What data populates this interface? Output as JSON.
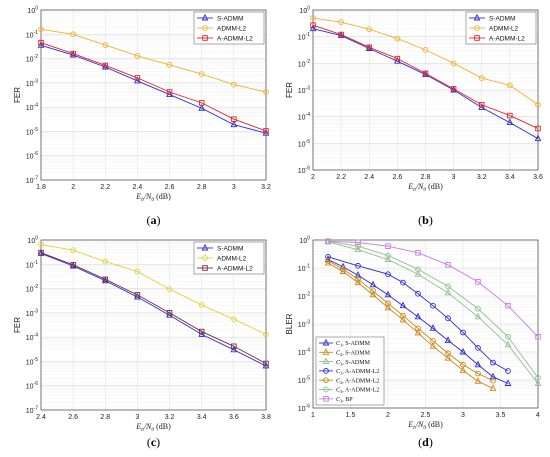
{
  "chart_data": [
    {
      "panel_label": "(a)",
      "type": "line",
      "ylabel": "FER",
      "xlabel": "E_b/N_0 (dB)",
      "xlim": [
        1.8,
        3.2
      ],
      "xticks": [
        "1.8",
        "2",
        "2.2",
        "2.4",
        "2.6",
        "2.8",
        "3",
        "3.2"
      ],
      "ylim_log10": [
        -7,
        0
      ],
      "grid": true,
      "legend_position": "top-right",
      "series": [
        {
          "name": "S-ADMM",
          "color": "#2b2bd6",
          "marker": "triangle",
          "x": [
            1.8,
            2.0,
            2.2,
            2.4,
            2.6,
            2.8,
            3.0,
            3.2
          ],
          "y": [
            0.035,
            0.014,
            0.0045,
            0.0012,
            0.00033,
            9e-05,
            1.9e-05,
            8.5e-06
          ]
        },
        {
          "name": "ADMM-L2",
          "color": "#f0b030",
          "marker": "circle",
          "x": [
            1.8,
            2.0,
            2.2,
            2.4,
            2.6,
            2.8,
            3.0,
            3.2
          ],
          "y": [
            0.16,
            0.1,
            0.036,
            0.013,
            0.0055,
            0.0023,
            0.00085,
            0.00042
          ]
        },
        {
          "name": "A-ADMM-L2",
          "color": "#e02525",
          "marker": "square",
          "x": [
            1.8,
            2.0,
            2.2,
            2.4,
            2.6,
            2.8,
            3.0,
            3.2
          ],
          "y": [
            0.045,
            0.016,
            0.0052,
            0.0016,
            0.00042,
            0.00015,
            3.2e-05,
            1.05e-05
          ]
        }
      ]
    },
    {
      "panel_label": "(b)",
      "type": "line",
      "ylabel": "FER",
      "xlabel": "E_b/N_0 (dB)",
      "xlim": [
        2.0,
        3.6
      ],
      "xticks": [
        "2",
        "2.2",
        "2.4",
        "2.6",
        "2.8",
        "3",
        "3.2",
        "3.4",
        "3.6"
      ],
      "ylim_log10": [
        -6,
        0
      ],
      "grid": true,
      "legend_position": "top-right",
      "series": [
        {
          "name": "S-ADMM",
          "color": "#2b2bd6",
          "marker": "triangle",
          "x": [
            2.0,
            2.2,
            2.4,
            2.6,
            2.8,
            3.0,
            3.2,
            3.4,
            3.6
          ],
          "y": [
            0.2,
            0.11,
            0.036,
            0.012,
            0.0038,
            0.001,
            0.00022,
            6e-05,
            1.5e-05
          ]
        },
        {
          "name": "ADMM-L2",
          "color": "#f0b030",
          "marker": "circle",
          "x": [
            2.0,
            2.2,
            2.4,
            2.6,
            2.8,
            3.0,
            3.2,
            3.4,
            3.6
          ],
          "y": [
            0.5,
            0.35,
            0.19,
            0.085,
            0.032,
            0.01,
            0.0028,
            0.0015,
            0.00028
          ]
        },
        {
          "name": "A-ADMM-L2",
          "color": "#e02525",
          "marker": "square",
          "x": [
            2.0,
            2.2,
            2.4,
            2.6,
            2.8,
            3.0,
            3.2,
            3.4,
            3.6
          ],
          "y": [
            0.27,
            0.12,
            0.04,
            0.015,
            0.0042,
            0.0011,
            0.00028,
            0.00011,
            3.6e-05
          ]
        }
      ]
    },
    {
      "panel_label": "(c)",
      "type": "line",
      "ylabel": "FER",
      "xlabel": "E_b/N_0 (dB)",
      "xlim": [
        2.4,
        3.8
      ],
      "xticks": [
        "2.4",
        "2.6",
        "2.8",
        "3",
        "3.2",
        "3.4",
        "3.6",
        "3.8"
      ],
      "ylim_log10": [
        -7,
        0
      ],
      "grid": true,
      "legend_position": "top-right",
      "series": [
        {
          "name": "S-ADMM",
          "color": "#2b2bd6",
          "marker": "triangle",
          "x": [
            2.4,
            2.6,
            2.8,
            3.0,
            3.2,
            3.4,
            3.6,
            3.8
          ],
          "y": [
            0.28,
            0.085,
            0.021,
            0.0045,
            0.0008,
            0.00013,
            3e-05,
            6.5e-06
          ]
        },
        {
          "name": "ADMM-L2",
          "color": "#e0d23a",
          "marker": "circle",
          "x": [
            2.4,
            2.6,
            2.8,
            3.0,
            3.2,
            3.4,
            3.6,
            3.8
          ],
          "y": [
            0.65,
            0.38,
            0.13,
            0.05,
            0.0095,
            0.0021,
            0.00055,
            0.00013
          ]
        },
        {
          "name": "A-ADMM-L2",
          "color": "#7a2a3a",
          "marker": "square",
          "x": [
            2.4,
            2.6,
            2.8,
            3.0,
            3.2,
            3.4,
            3.6,
            3.8
          ],
          "y": [
            0.3,
            0.095,
            0.024,
            0.0055,
            0.001,
            0.00017,
            4.2e-05,
            8.2e-06
          ]
        }
      ]
    },
    {
      "panel_label": "(d)",
      "type": "line",
      "ylabel": "BLER",
      "xlabel": "E_b/N_0 (dB)",
      "xlim": [
        1.0,
        4.0
      ],
      "xticks": [
        "1",
        "1.5",
        "2",
        "2.5",
        "3",
        "3.5",
        "4"
      ],
      "ylim_log10": [
        -6,
        0
      ],
      "grid": true,
      "legend_position": "bottom-left",
      "series": [
        {
          "name": "C1, S-ADMM",
          "sub": "1",
          "method": ", S-ADMM",
          "color": "#2b2bd6",
          "marker": "triangle",
          "x": [
            1.2,
            1.4,
            1.6,
            1.8,
            2.0,
            2.2,
            2.4,
            2.6,
            2.8,
            3.0,
            3.2,
            3.4,
            3.6
          ],
          "y": [
            0.2,
            0.11,
            0.055,
            0.025,
            0.011,
            0.0045,
            0.0018,
            0.0007,
            0.00026,
            0.0001,
            3.5e-05,
            1.3e-05,
            7.5e-06
          ]
        },
        {
          "name": "C2, S-ADMM",
          "sub": "2",
          "method": ", S-ADMM",
          "color": "#c98a1a",
          "marker": "triangle",
          "x": [
            1.2,
            1.4,
            1.6,
            1.8,
            2.0,
            2.2,
            2.4,
            2.6,
            2.8,
            3.0,
            3.2,
            3.4
          ],
          "y": [
            0.15,
            0.075,
            0.03,
            0.011,
            0.0038,
            0.0014,
            0.00048,
            0.00016,
            6e-05,
            2.2e-05,
            9e-06,
            5e-06
          ]
        },
        {
          "name": "C3, S-ADMM",
          "sub": "3",
          "method": ", S-ADMM",
          "color": "#8fbf8f",
          "marker": "triangle",
          "x": [
            1.2,
            1.6,
            2.0,
            2.4,
            2.8,
            3.2,
            3.6,
            4.0
          ],
          "y": [
            0.85,
            0.45,
            0.2,
            0.06,
            0.013,
            0.0018,
            0.00018,
            7.5e-06
          ]
        },
        {
          "name": "C1, A-ADMM-L2",
          "sub": "1",
          "method": ", A-ADMM-L2",
          "color": "#2b2bd6",
          "marker": "circle",
          "x": [
            1.2,
            1.6,
            2.0,
            2.2,
            2.4,
            2.6,
            2.8,
            3.0,
            3.2,
            3.4,
            3.6
          ],
          "y": [
            0.25,
            0.12,
            0.06,
            0.03,
            0.012,
            0.0045,
            0.0016,
            0.0005,
            0.00014,
            4.2e-05,
            2.1e-05
          ]
        },
        {
          "name": "C2, A-ADMM-L2",
          "sub": "2",
          "method": ", A-ADMM-L2",
          "color": "#c98a1a",
          "marker": "circle",
          "x": [
            1.2,
            1.4,
            1.6,
            1.8,
            2.0,
            2.2,
            2.4,
            2.6,
            2.8,
            3.0,
            3.2,
            3.4
          ],
          "y": [
            0.18,
            0.09,
            0.04,
            0.015,
            0.0055,
            0.002,
            0.0007,
            0.00025,
            9e-05,
            3.5e-05,
            1.7e-05,
            9.5e-06
          ]
        },
        {
          "name": "C3, A-ADMM-L2",
          "sub": "3",
          "method": ", A-ADMM-L2",
          "color": "#8fbf8f",
          "marker": "circle",
          "x": [
            1.2,
            1.6,
            2.0,
            2.4,
            2.8,
            3.2,
            3.6,
            4.0
          ],
          "y": [
            0.9,
            0.6,
            0.28,
            0.09,
            0.022,
            0.0035,
            0.00035,
            1.2e-05
          ]
        },
        {
          "name": "C3, BP",
          "sub": "3",
          "method": ", BP",
          "color": "#c77de0",
          "marker": "square",
          "x": [
            1.2,
            1.6,
            2.0,
            2.4,
            2.8,
            3.2,
            3.6,
            4.0
          ],
          "y": [
            0.9,
            0.82,
            0.6,
            0.35,
            0.13,
            0.032,
            0.0045,
            0.00035
          ]
        }
      ]
    }
  ]
}
